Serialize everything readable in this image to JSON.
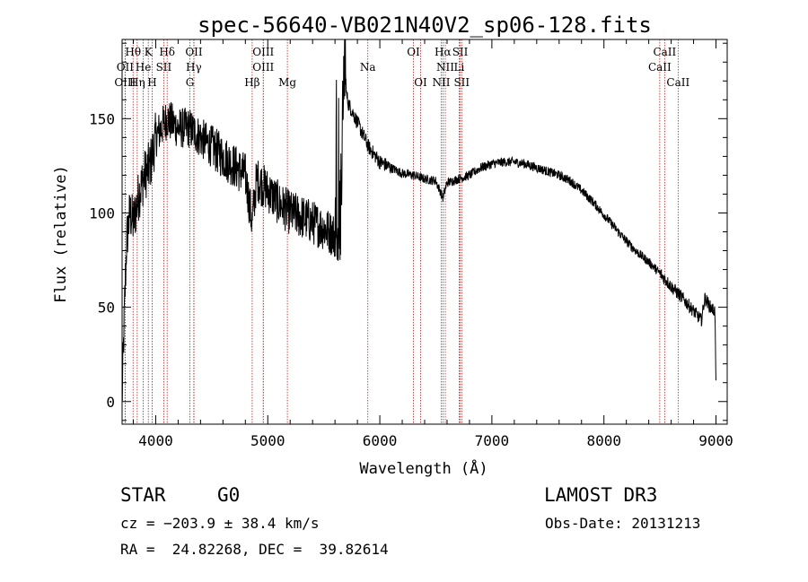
{
  "chart_data": {
    "type": "line",
    "title": "spec-56640-VB021N40V2_sp06-128.fits",
    "xlabel": "Wavelength (Å)",
    "ylabel": "Flux (relative)",
    "xlim": [
      3700,
      9100
    ],
    "ylim": [
      -12,
      192
    ],
    "xticks": [
      4000,
      5000,
      6000,
      7000,
      8000,
      9000
    ],
    "yticks": [
      0,
      50,
      100,
      150
    ],
    "spectrum_anchors": [
      [
        3700,
        0
      ],
      [
        3715,
        35
      ],
      [
        3740,
        85
      ],
      [
        3770,
        100
      ],
      [
        3800,
        95
      ],
      [
        3850,
        110
      ],
      [
        3900,
        120
      ],
      [
        3950,
        125
      ],
      [
        4000,
        140
      ],
      [
        4100,
        150
      ],
      [
        4200,
        145
      ],
      [
        4300,
        145
      ],
      [
        4400,
        140
      ],
      [
        4500,
        135
      ],
      [
        4600,
        130
      ],
      [
        4700,
        125
      ],
      [
        4800,
        120
      ],
      [
        4860,
        95
      ],
      [
        4900,
        118
      ],
      [
        5000,
        112
      ],
      [
        5100,
        105
      ],
      [
        5200,
        100
      ],
      [
        5300,
        98
      ],
      [
        5400,
        95
      ],
      [
        5500,
        92
      ],
      [
        5600,
        88
      ],
      [
        5650,
        85
      ],
      [
        5680,
        168
      ],
      [
        5720,
        158
      ],
      [
        5800,
        148
      ],
      [
        5900,
        135
      ],
      [
        6000,
        127
      ],
      [
        6100,
        124
      ],
      [
        6200,
        121
      ],
      [
        6300,
        120
      ],
      [
        6400,
        118
      ],
      [
        6500,
        117
      ],
      [
        6563,
        108
      ],
      [
        6600,
        116
      ],
      [
        6700,
        118
      ],
      [
        6800,
        120
      ],
      [
        6900,
        124
      ],
      [
        7000,
        126
      ],
      [
        7100,
        127
      ],
      [
        7200,
        127
      ],
      [
        7300,
        126
      ],
      [
        7400,
        124
      ],
      [
        7500,
        122
      ],
      [
        7600,
        120
      ],
      [
        7700,
        117
      ],
      [
        7800,
        112
      ],
      [
        7900,
        106
      ],
      [
        8000,
        99
      ],
      [
        8100,
        92
      ],
      [
        8200,
        85
      ],
      [
        8300,
        79
      ],
      [
        8400,
        74
      ],
      [
        8500,
        68
      ],
      [
        8600,
        61
      ],
      [
        8700,
        55
      ],
      [
        8800,
        48
      ],
      [
        8870,
        43
      ],
      [
        8900,
        55
      ],
      [
        8950,
        50
      ],
      [
        8990,
        48
      ],
      [
        9000,
        10
      ]
    ],
    "noise_sigma_note": "noisy absorption-line spectrum",
    "lines": [
      {
        "label": "Hθ",
        "wl": 3798,
        "row": 1
      },
      {
        "label": "K",
        "wl": 3934,
        "row": 1
      },
      {
        "label": "Hδ",
        "wl": 4102,
        "row": 1
      },
      {
        "label": "OII",
        "wl": 4341,
        "row": 1
      },
      {
        "label": "OIII",
        "wl": 4960,
        "row": 1
      },
      {
        "label": "OI",
        "wl": 6300,
        "row": 1
      },
      {
        "label": "Hα",
        "wl": 6563,
        "row": 1
      },
      {
        "label": "SII",
        "wl": 6717,
        "row": 1
      },
      {
        "label": "CaII",
        "wl": 8542,
        "row": 1
      },
      {
        "label": "OII",
        "wl": 3727,
        "row": 2
      },
      {
        "label": "He",
        "wl": 3889,
        "row": 2
      },
      {
        "label": "SII",
        "wl": 4072,
        "row": 2
      },
      {
        "label": "Hγ",
        "wl": 4340,
        "row": 2
      },
      {
        "label": "OIII",
        "wl": 4960,
        "row": 2
      },
      {
        "label": "Na",
        "wl": 5893,
        "row": 2
      },
      {
        "label": "NII",
        "wl": 6584,
        "row": 2
      },
      {
        "label": "Li",
        "wl": 6708,
        "row": 2
      },
      {
        "label": "CaII",
        "wl": 8498,
        "row": 2
      },
      {
        "label": "OIII",
        "wl": 3727,
        "row": 3
      },
      {
        "label": "Hη",
        "wl": 3835,
        "row": 3
      },
      {
        "label": "H",
        "wl": 3968,
        "row": 3
      },
      {
        "label": "G",
        "wl": 4305,
        "row": 3
      },
      {
        "label": "Hβ",
        "wl": 4861,
        "row": 3
      },
      {
        "label": "Mg",
        "wl": 5175,
        "row": 3
      },
      {
        "label": "OI",
        "wl": 6364,
        "row": 3
      },
      {
        "label": "NII",
        "wl": 6548,
        "row": 3
      },
      {
        "label": "SII",
        "wl": 6731,
        "row": 3
      },
      {
        "label": "CaII",
        "wl": 8662,
        "row": 3
      }
    ],
    "line_color": "#b22222"
  },
  "footer": {
    "class_label": "STAR",
    "subclass": "G0",
    "survey": "LAMOST DR3",
    "cz": "cz = −203.9 ± 38.4 km/s",
    "obs_date": "Obs-Date: 20131213",
    "coords": "RA =  24.82268, DEC =  39.82614"
  }
}
